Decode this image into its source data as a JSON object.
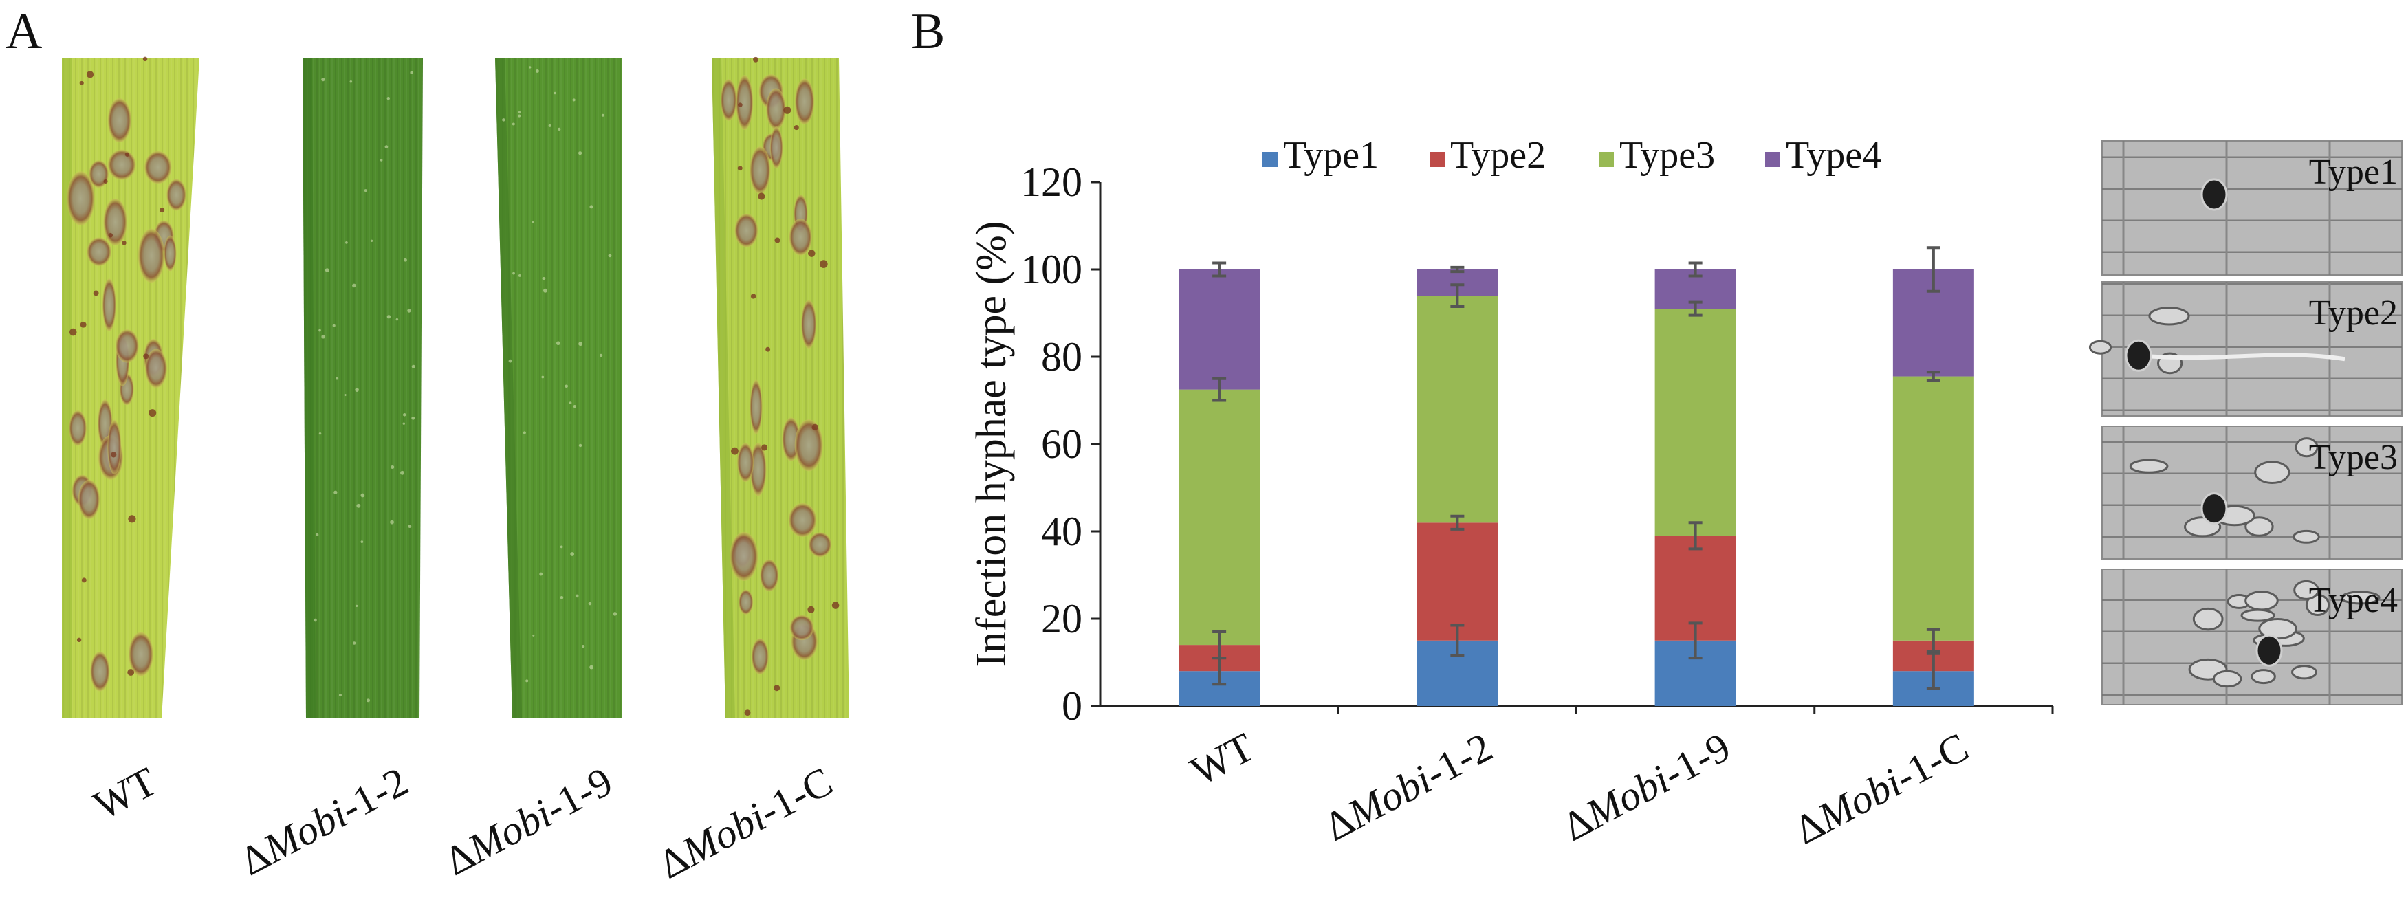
{
  "panel_a": {
    "letter": "A",
    "leaves": [
      {
        "name": "WT",
        "prefix": "",
        "italic": "",
        "suffix": "WT",
        "base": "#bdd54e",
        "dark": "#9fbf3c",
        "lesions": "many"
      },
      {
        "name": "ΔMobi-1-2",
        "prefix": "Δ",
        "italic": "Mobi",
        "suffix": "-1-2",
        "base": "#4f8c2c",
        "dark": "#3e7a22",
        "lesions": "none"
      },
      {
        "name": "ΔMobi-1-9",
        "prefix": "Δ",
        "italic": "Mobi",
        "suffix": "-1-9",
        "base": "#57952f",
        "dark": "#447f25",
        "lesions": "none"
      },
      {
        "name": "ΔMobi-1-C",
        "prefix": "Δ",
        "italic": "Mobi",
        "suffix": "-1-C",
        "base": "#b4d04a",
        "dark": "#97b93a",
        "lesions": "many"
      }
    ]
  },
  "panel_b": {
    "letter": "B",
    "micrograph_labels": [
      "Type1",
      "Type2",
      "Type3",
      "Type4"
    ]
  },
  "chart_data": {
    "type": "bar",
    "stacked": true,
    "ylabel": "Infection hyphae type (%)",
    "xlabel": "",
    "ylim": [
      0,
      120
    ],
    "yticks": [
      0,
      20,
      40,
      60,
      80,
      100,
      120
    ],
    "categories": [
      {
        "prefix": "",
        "italic": "",
        "suffix": "WT"
      },
      {
        "prefix": "Δ",
        "italic": "Mobi",
        "suffix": "-1-2"
      },
      {
        "prefix": "Δ",
        "italic": "Mobi",
        "suffix": "-1-9"
      },
      {
        "prefix": "Δ",
        "italic": "Mobi",
        "suffix": "-1-C"
      }
    ],
    "legend": "top",
    "series": [
      {
        "name": "Type1",
        "color": "#4a7ebb",
        "values": [
          8,
          15,
          15,
          8
        ],
        "errors": [
          3,
          3.5,
          4,
          4
        ]
      },
      {
        "name": "Type2",
        "color": "#be4b48",
        "values": [
          6,
          27,
          24,
          7
        ],
        "errors": [
          3,
          1.5,
          3,
          2.5
        ]
      },
      {
        "name": "Type3",
        "color": "#98b954",
        "values": [
          58.5,
          52,
          52,
          60.5
        ],
        "errors": [
          2.5,
          2.5,
          1.5,
          1
        ]
      },
      {
        "name": "Type4",
        "color": "#7d5fa0",
        "values": [
          27.5,
          6,
          9,
          24.5
        ],
        "errors": [
          1.5,
          0.5,
          1.5,
          5
        ]
      }
    ]
  }
}
